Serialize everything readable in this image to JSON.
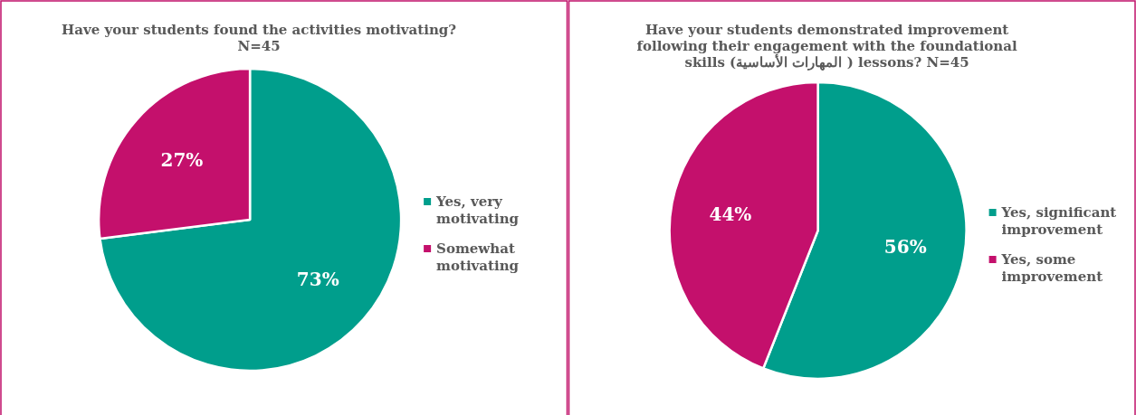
{
  "chart_data": [
    {
      "type": "pie",
      "title": "Have your students found the activities motivating? N=45",
      "categories": [
        "Yes, very motivating",
        "Somewhat motivating"
      ],
      "values": [
        73,
        27
      ],
      "value_labels": [
        "73%",
        "27%"
      ],
      "colors": [
        "#009e8c",
        "#c4106c"
      ],
      "legend": "right"
    },
    {
      "type": "pie",
      "title": "Have your students demonstrated improvement following their engagement with the foundational skills (المهارات الأساسية ) lessons? N=45",
      "categories": [
        "Yes, significant improvement",
        "Yes, some improvement"
      ],
      "values": [
        56,
        44
      ],
      "value_labels": [
        "56%",
        "44%"
      ],
      "colors": [
        "#009e8c",
        "#c4106c"
      ],
      "legend": "right"
    }
  ]
}
